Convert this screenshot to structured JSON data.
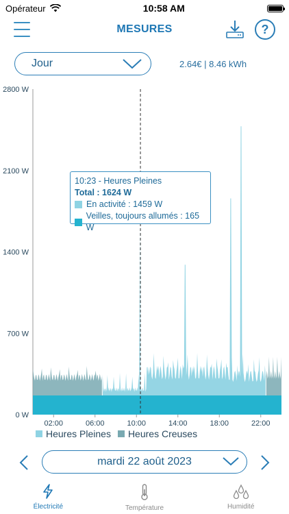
{
  "status_bar": {
    "carrier": "Opérateur",
    "time": "10:58 AM"
  },
  "header": {
    "title": "MESURES"
  },
  "period": {
    "selected": "Jour"
  },
  "summary": "2.64€ | 8.46 kWh",
  "chart_data": {
    "type": "area",
    "y_tick_labels": [
      "2800 W",
      "2100 W",
      "1400 W",
      "700 W",
      "0 W"
    ],
    "x_tick_labels": [
      "02:00",
      "06:00",
      "10:00",
      "14:00",
      "18:00",
      "22:00"
    ],
    "ylim": [
      0,
      2800
    ],
    "series": [
      {
        "name": "Heures Pleines",
        "color": "#8fd3e3"
      },
      {
        "name": "Heures Creuses",
        "color": "#79a9b1"
      }
    ],
    "baseline_watts": 165,
    "peak_watts": 2480,
    "cursor_time": "10:23"
  },
  "legend": {
    "peak": "Heures Pleines",
    "offpeak": "Heures Creuses"
  },
  "tooltip": {
    "title": "10:23 - Heures Pleines",
    "total": "Total : 1624 W",
    "active": "En activité : 1459 W",
    "standby": "Veilles, toujours allumés : 165 W"
  },
  "date": {
    "label": "mardi 22 août 2023"
  },
  "tabs": [
    {
      "label": "Électricité",
      "active": true,
      "icon": "bolt-icon"
    },
    {
      "label": "Température",
      "active": false,
      "icon": "thermometer-icon"
    },
    {
      "label": "Humidité",
      "active": false,
      "icon": "droplets-icon"
    }
  ],
  "colors": {
    "accent": "#1e77b4",
    "peak_area": "#8fd3e3",
    "offpeak_area": "#79a9b1",
    "standby_area": "#24b3cf"
  }
}
